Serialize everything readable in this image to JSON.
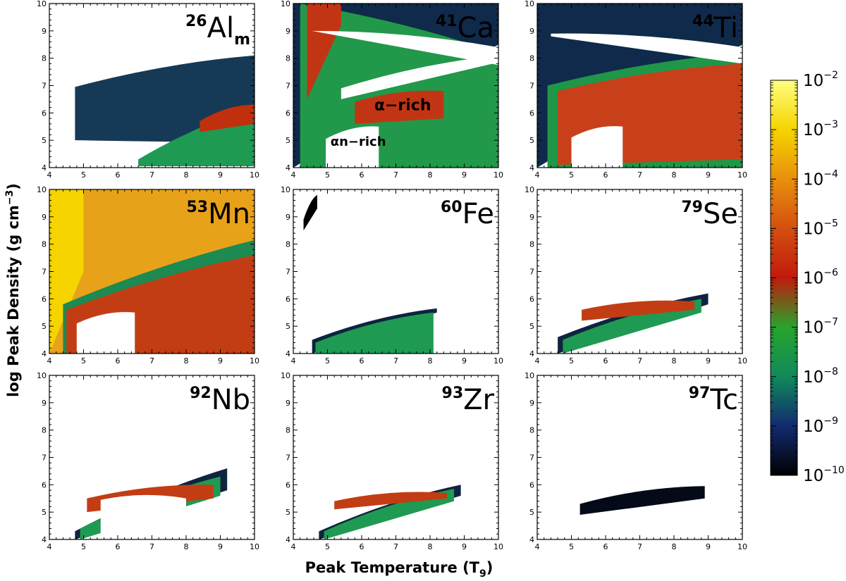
{
  "chart_data": {
    "type": "heatmap",
    "xlabel_main": "Peak Temperature (T",
    "xlabel_sub": "9",
    "xlabel_close": ")",
    "ylabel_main": "log Peak Density (g cm",
    "ylabel_sup": "−3",
    "ylabel_close": ")",
    "xlim": [
      4,
      10
    ],
    "ylim": [
      4,
      10
    ],
    "xticks": [
      "4",
      "5",
      "6",
      "7",
      "8",
      "9",
      "10"
    ],
    "yticks": [
      "4",
      "5",
      "6",
      "7",
      "8",
      "9",
      "10"
    ],
    "colorbar": {
      "scale": "log",
      "range": [
        1e-10,
        0.01
      ],
      "base": "10",
      "exponents": [
        "−2",
        "−3",
        "−4",
        "−5",
        "−6",
        "−7",
        "−8",
        "−9",
        "−10"
      ],
      "colors": [
        "#ffff80",
        "#f5d400",
        "#e8900c",
        "#d44f10",
        "#c01a0c",
        "#28a32c",
        "#0f8a5a",
        "#132a70",
        "#000000"
      ]
    },
    "panels": [
      {
        "mass": "26",
        "symbol": "Al",
        "subscript": "m",
        "regions": [
          {
            "shape": "band",
            "T0": 4.75,
            "T1": 10,
            "yb0": 5.0,
            "yb1": 4.9,
            "yt0": 6.95,
            "yt1": 8.1,
            "fill": "#163a56"
          },
          {
            "shape": "band",
            "T0": 6.6,
            "T1": 10,
            "yb0": 4.05,
            "yb1": 4.05,
            "yt0": 4.3,
            "yt1": 6.2,
            "fill": "#1e9a52"
          },
          {
            "shape": "band",
            "T0": 8.4,
            "T1": 10,
            "yb0": 5.3,
            "yb1": 5.6,
            "yt0": 5.7,
            "yt1": 6.3,
            "fill": "#c0300c"
          }
        ]
      },
      {
        "mass": "41",
        "symbol": "Ca",
        "regions": [
          {
            "shape": "band",
            "T0": 4.0,
            "T1": 10,
            "yb0": 4.0,
            "yb1": 8.5,
            "yt0": 10,
            "yt1": 10,
            "fill": "#0f2a4a"
          },
          {
            "shape": "band",
            "T0": 4.2,
            "T1": 10,
            "yb0": 4.0,
            "yb1": 4.0,
            "yt0": 10,
            "yt1": 8.2,
            "fill": "#22984a"
          },
          {
            "shape": "band",
            "T0": 4.4,
            "T1": 5.4,
            "yb0": 6.5,
            "yb1": 9.2,
            "yt0": 10,
            "yt1": 10,
            "fill": "#c23514"
          },
          {
            "shape": "band",
            "T0": 5.8,
            "T1": 8.4,
            "yb0": 5.6,
            "yb1": 5.8,
            "yt0": 6.4,
            "yt1": 6.8,
            "fill": "#c23514"
          },
          {
            "shape": "gap",
            "T0": 4.55,
            "T1": 10,
            "yb0": 9.0,
            "yb1": 7.75,
            "yt0": 9.0,
            "yt1": 8.4
          },
          {
            "shape": "gap",
            "T0": 5.4,
            "T1": 10,
            "yb0": 6.5,
            "yb1": 7.85,
            "yt0": 6.9,
            "yt1": 8.1
          },
          {
            "shape": "gap",
            "T0": 4.95,
            "T1": 6.5,
            "yb0": 4.0,
            "yb1": 4.0,
            "yt0": 5.05,
            "yt1": 5.5
          }
        ],
        "annotations": [
          "α−rich",
          "αn−rich"
        ]
      },
      {
        "mass": "44",
        "symbol": "Ti",
        "regions": [
          {
            "shape": "band",
            "T0": 4.0,
            "T1": 10,
            "yb0": 4.0,
            "yb1": 8.5,
            "yt0": 10,
            "yt1": 10,
            "fill": "#0f2a4a"
          },
          {
            "shape": "band",
            "T0": 4.3,
            "T1": 10,
            "yb0": 4.0,
            "yb1": 4.0,
            "yt0": 7.0,
            "yt1": 8.2,
            "fill": "#1f9648"
          },
          {
            "shape": "band",
            "T0": 4.6,
            "T1": 10,
            "yb0": 4.1,
            "yb1": 4.3,
            "yt0": 6.8,
            "yt1": 7.8,
            "fill": "#c8401a"
          },
          {
            "shape": "gap",
            "T0": 4.4,
            "T1": 10,
            "yb0": 8.8,
            "yb1": 7.8,
            "yt0": 8.9,
            "yt1": 8.4
          },
          {
            "shape": "gap",
            "T0": 5.0,
            "T1": 6.5,
            "yb0": 4.0,
            "yb1": 4.0,
            "yt0": 5.1,
            "yt1": 5.5
          }
        ]
      },
      {
        "mass": "53",
        "symbol": "Mn",
        "regions": [
          {
            "shape": "band",
            "T0": 4.0,
            "T1": 10,
            "yb0": 4.0,
            "yb1": 4.0,
            "yt0": 10,
            "yt1": 10,
            "fill": "#e8a21a"
          },
          {
            "shape": "band",
            "T0": 4.0,
            "T1": 5.0,
            "yb0": 4.0,
            "yb1": 7.0,
            "yt0": 10,
            "yt1": 10,
            "fill": "#f5d400"
          },
          {
            "shape": "band",
            "T0": 4.4,
            "T1": 10,
            "yb0": 4.0,
            "yb1": 4.0,
            "yt0": 5.8,
            "yt1": 8.15,
            "fill": "#1d8a52"
          },
          {
            "shape": "band",
            "T0": 4.5,
            "T1": 10,
            "yb0": 4.0,
            "yb1": 4.0,
            "yt0": 5.6,
            "yt1": 7.6,
            "fill": "#c23d14"
          },
          {
            "shape": "gap",
            "T0": 4.8,
            "T1": 6.5,
            "yb0": 4.0,
            "yb1": 4.0,
            "yt0": 5.1,
            "yt1": 5.5
          }
        ]
      },
      {
        "mass": "60",
        "symbol": "Fe",
        "regions": [
          {
            "shape": "band",
            "T0": 4.3,
            "T1": 4.7,
            "yb0": 8.5,
            "yb1": 9.3,
            "yt0": 8.9,
            "yt1": 9.8,
            "fill": "#000000"
          },
          {
            "shape": "band",
            "T0": 4.55,
            "T1": 8.2,
            "yb0": 4.0,
            "yb1": 5.5,
            "yt0": 4.5,
            "yt1": 5.65,
            "fill": "#0e2440"
          },
          {
            "shape": "band",
            "T0": 4.65,
            "T1": 8.1,
            "yb0": 4.0,
            "yb1": 4.0,
            "yt0": 4.4,
            "yt1": 5.5,
            "fill": "#1f9a52"
          }
        ]
      },
      {
        "mass": "79",
        "symbol": "Se",
        "regions": [
          {
            "shape": "band",
            "T0": 4.6,
            "T1": 9.0,
            "yb0": 4.0,
            "yb1": 5.8,
            "yt0": 4.6,
            "yt1": 6.2,
            "fill": "#0e2440"
          },
          {
            "shape": "band",
            "T0": 4.75,
            "T1": 8.8,
            "yb0": 4.0,
            "yb1": 5.5,
            "yt0": 4.5,
            "yt1": 6.0,
            "fill": "#1f9a52"
          },
          {
            "shape": "band",
            "T0": 5.3,
            "T1": 8.6,
            "yb0": 5.2,
            "yb1": 5.6,
            "yt0": 5.6,
            "yt1": 5.9,
            "fill": "#c23d14"
          }
        ]
      },
      {
        "mass": "92",
        "symbol": "Nb",
        "regions": [
          {
            "shape": "band",
            "T0": 4.75,
            "T1": 9.2,
            "yb0": 4.0,
            "yb1": 5.8,
            "yt0": 4.3,
            "yt1": 6.6,
            "fill": "#0e2440"
          },
          {
            "shape": "band",
            "T0": 4.9,
            "T1": 9.0,
            "yb0": 4.0,
            "yb1": 5.6,
            "yt0": 4.4,
            "yt1": 6.3,
            "fill": "#1f9a52"
          },
          {
            "shape": "band",
            "T0": 5.1,
            "T1": 8.8,
            "yb0": 5.0,
            "yb1": 5.5,
            "yt0": 5.5,
            "yt1": 6.0,
            "fill": "#c23d14"
          },
          {
            "shape": "gap",
            "T0": 5.5,
            "T1": 8.0,
            "yb0": 4.0,
            "yb1": 4.0,
            "yt0": 5.45,
            "yt1": 5.5
          }
        ]
      },
      {
        "mass": "93",
        "symbol": "Zr",
        "regions": [
          {
            "shape": "band",
            "T0": 4.75,
            "T1": 8.9,
            "yb0": 4.0,
            "yb1": 5.6,
            "yt0": 4.3,
            "yt1": 6.0,
            "fill": "#0e2440"
          },
          {
            "shape": "band",
            "T0": 4.9,
            "T1": 8.7,
            "yb0": 4.0,
            "yb1": 5.4,
            "yt0": 4.3,
            "yt1": 5.85,
            "fill": "#1f9a52"
          },
          {
            "shape": "band",
            "T0": 5.2,
            "T1": 8.5,
            "yb0": 5.1,
            "yb1": 5.5,
            "yt0": 5.4,
            "yt1": 5.7,
            "fill": "#c23d14"
          }
        ]
      },
      {
        "mass": "97",
        "symbol": "Tc",
        "regions": [
          {
            "shape": "band",
            "T0": 5.25,
            "T1": 8.9,
            "yb0": 4.9,
            "yb1": 5.5,
            "yt0": 5.3,
            "yt1": 5.95,
            "fill": "#050a18"
          }
        ]
      }
    ]
  }
}
